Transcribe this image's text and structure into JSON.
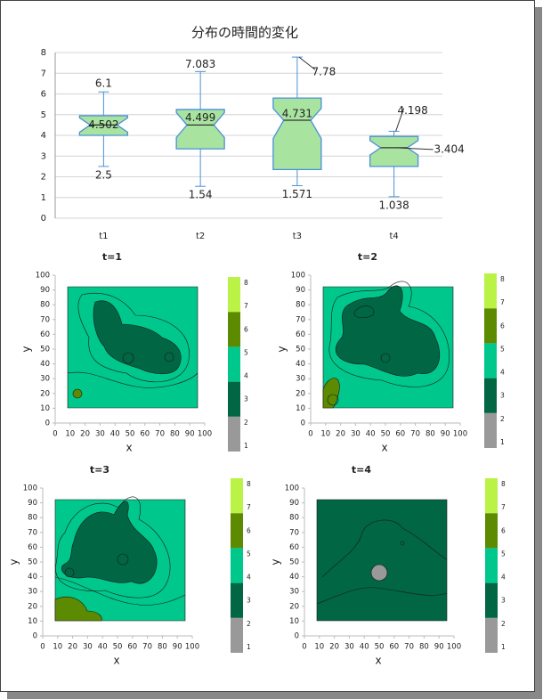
{
  "chart_data": [
    {
      "type": "boxplot",
      "title": "分布の時間的変化",
      "categories": [
        "t1",
        "t2",
        "t3",
        "t4"
      ],
      "boxes": [
        {
          "min": 2.5,
          "q1": 4.0,
          "notch_low": 4.15,
          "median": 4.502,
          "notch_high": 4.85,
          "q3": 4.95,
          "max": 6.1
        },
        {
          "min": 1.54,
          "q1": 3.35,
          "notch_low": 3.9,
          "median": 4.499,
          "notch_high": 5.1,
          "q3": 5.25,
          "max": 7.083
        },
        {
          "min": 1.571,
          "q1": 2.35,
          "notch_low": 3.85,
          "median": 4.731,
          "notch_high": 5.3,
          "q3": 5.8,
          "max": 7.78
        },
        {
          "min": 1.038,
          "q1": 2.5,
          "notch_low": 3.05,
          "median": 3.404,
          "notch_high": 3.75,
          "q3": 3.95,
          "max": 4.198
        }
      ],
      "box_color": "#a8e4a0",
      "line_color": "#4a90d9",
      "ylim": [
        0,
        8
      ],
      "yticks": [
        0,
        1,
        2,
        3,
        4,
        5,
        6,
        7,
        8
      ],
      "grid": true
    },
    {
      "type": "contour",
      "title": "t=1",
      "xlabel": "x",
      "ylabel": "y",
      "xlim": [
        0,
        100
      ],
      "ylim": [
        0,
        100
      ],
      "xticks": [
        0,
        10,
        20,
        30,
        40,
        50,
        60,
        70,
        80,
        90,
        100
      ],
      "yticks": [
        0,
        10,
        20,
        30,
        40,
        50,
        60,
        70,
        80,
        90,
        100
      ],
      "colorbar": {
        "lim": [
          1,
          8.5
        ],
        "levels": [
          1,
          2.5,
          4,
          5.5,
          7,
          8.5
        ],
        "colors": [
          "#999999",
          "#006644",
          "#00c78c",
          "#5c8a00",
          "#bbf246"
        ],
        "ticks": [
          1,
          2,
          3,
          4,
          5,
          6,
          7,
          8
        ]
      }
    },
    {
      "type": "contour",
      "title": "t=2",
      "xlabel": "x",
      "ylabel": "y",
      "xlim": [
        0,
        100
      ],
      "ylim": [
        0,
        100
      ],
      "xticks": [
        0,
        10,
        20,
        30,
        40,
        50,
        60,
        70,
        80,
        90,
        100
      ],
      "yticks": [
        0,
        10,
        20,
        30,
        40,
        50,
        60,
        70,
        80,
        90,
        100
      ],
      "colorbar": {
        "lim": [
          1,
          8.5
        ],
        "levels": [
          1,
          2.5,
          4,
          5.5,
          7,
          8.5
        ],
        "colors": [
          "#999999",
          "#006644",
          "#00c78c",
          "#5c8a00",
          "#bbf246"
        ],
        "ticks": [
          1,
          2,
          3,
          4,
          5,
          6,
          7,
          8
        ]
      }
    },
    {
      "type": "contour",
      "title": "t=3",
      "xlabel": "x",
      "ylabel": "y",
      "xlim": [
        0,
        100
      ],
      "ylim": [
        0,
        100
      ],
      "xticks": [
        0,
        10,
        20,
        30,
        40,
        50,
        60,
        70,
        80,
        90,
        100
      ],
      "yticks": [
        0,
        10,
        20,
        30,
        40,
        50,
        60,
        70,
        80,
        90,
        100
      ],
      "colorbar": {
        "lim": [
          1,
          8.5
        ],
        "levels": [
          1,
          2.5,
          4,
          5.5,
          7,
          8.5
        ],
        "colors": [
          "#999999",
          "#006644",
          "#00c78c",
          "#5c8a00",
          "#bbf246"
        ],
        "ticks": [
          1,
          2,
          3,
          4,
          5,
          6,
          7,
          8
        ]
      }
    },
    {
      "type": "contour",
      "title": "t=4",
      "xlabel": "x",
      "ylabel": "y",
      "xlim": [
        0,
        100
      ],
      "ylim": [
        0,
        100
      ],
      "xticks": [
        0,
        10,
        20,
        30,
        40,
        50,
        60,
        70,
        80,
        90,
        100
      ],
      "yticks": [
        0,
        10,
        20,
        30,
        40,
        50,
        60,
        70,
        80,
        90,
        100
      ],
      "colorbar": {
        "lim": [
          1,
          8.5
        ],
        "levels": [
          1,
          2.5,
          4,
          5.5,
          7,
          8.5
        ],
        "colors": [
          "#999999",
          "#006644",
          "#00c78c",
          "#5c8a00",
          "#bbf246"
        ],
        "ticks": [
          1,
          2,
          3,
          4,
          5,
          6,
          7,
          8
        ]
      }
    }
  ]
}
